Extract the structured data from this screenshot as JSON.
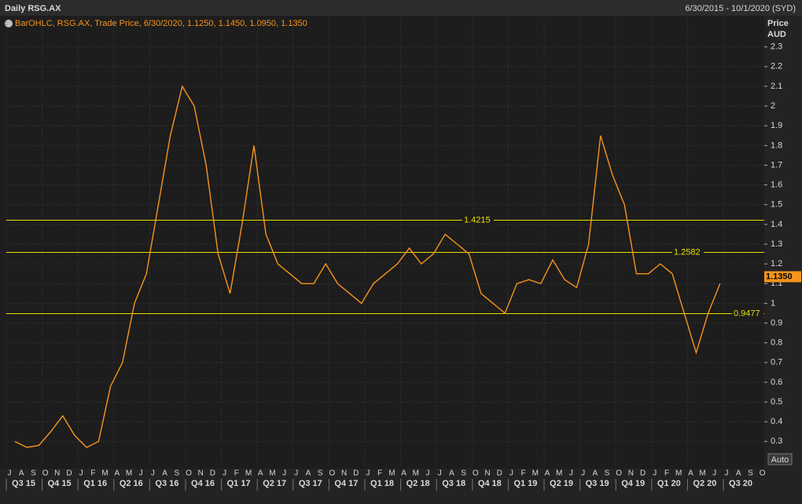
{
  "chart_data": {
    "type": "line",
    "title": "Daily RSG.AX",
    "date_range": "6/30/2015 - 10/1/2020 (SYD)",
    "y_axis_label": "Price",
    "y_axis_unit": "AUD",
    "scale_mode": "Auto",
    "categories": [
      "J",
      "A",
      "S",
      "O",
      "N",
      "D",
      "J",
      "F",
      "M",
      "A",
      "M",
      "J",
      "J",
      "A",
      "S",
      "O",
      "N",
      "D",
      "J",
      "F",
      "M",
      "A",
      "M",
      "J",
      "J",
      "A",
      "S",
      "O",
      "N",
      "D",
      "J",
      "F",
      "M",
      "A",
      "M",
      "J",
      "J",
      "A",
      "S",
      "O",
      "N",
      "D",
      "J",
      "F",
      "M",
      "A",
      "M",
      "J",
      "J",
      "A",
      "S",
      "O",
      "N",
      "D",
      "J",
      "F",
      "M",
      "A",
      "M",
      "J",
      "J",
      "A",
      "S",
      "O"
    ],
    "quarters": [
      "Q3 15",
      "Q4 15",
      "Q1 16",
      "Q2 16",
      "Q3 16",
      "Q4 16",
      "Q1 17",
      "Q2 17",
      "Q3 17",
      "Q4 17",
      "Q1 18",
      "Q2 18",
      "Q3 18",
      "Q4 18",
      "Q1 19",
      "Q2 19",
      "Q3 19",
      "Q4 19",
      "Q1 20",
      "Q2 20",
      "Q3 20"
    ],
    "series": [
      {
        "name": "BarOHLC, RSG.AX, Trade Price, 6/30/2020, 1.1250, 1.1450, 1.0950, 1.1350",
        "color": "#f7941d",
        "values": [
          0.3,
          0.27,
          0.28,
          0.35,
          0.43,
          0.33,
          0.27,
          0.3,
          0.58,
          0.7,
          1.0,
          1.15,
          1.5,
          1.85,
          2.1,
          2.0,
          1.7,
          1.25,
          1.05,
          1.4,
          1.8,
          1.35,
          1.2,
          1.15,
          1.1,
          1.1,
          1.2,
          1.1,
          1.05,
          1.0,
          1.1,
          1.15,
          1.2,
          1.28,
          1.2,
          1.25,
          1.35,
          1.3,
          1.25,
          1.05,
          1.0,
          0.95,
          1.1,
          1.12,
          1.1,
          1.22,
          1.12,
          1.08,
          1.3,
          1.85,
          1.65,
          1.5,
          1.15,
          1.15,
          1.2,
          1.15,
          0.95,
          0.75,
          0.95,
          1.1,
          null,
          null,
          null,
          null
        ]
      }
    ],
    "levels": [
      1.4215,
      1.2582,
      0.9477
    ],
    "level_color": "#e8e000",
    "last_price": {
      "value": 1.135,
      "label": "1.1350"
    },
    "ylim": [
      0.17,
      2.45
    ],
    "yticks": [
      0.3,
      0.4,
      0.5,
      0.6,
      0.7,
      0.8,
      0.9,
      1,
      1.1,
      1.2,
      1.3,
      1.4,
      1.5,
      1.6,
      1.7,
      1.8,
      1.9,
      2,
      2.1,
      2.2,
      2.3
    ],
    "grid": true
  }
}
